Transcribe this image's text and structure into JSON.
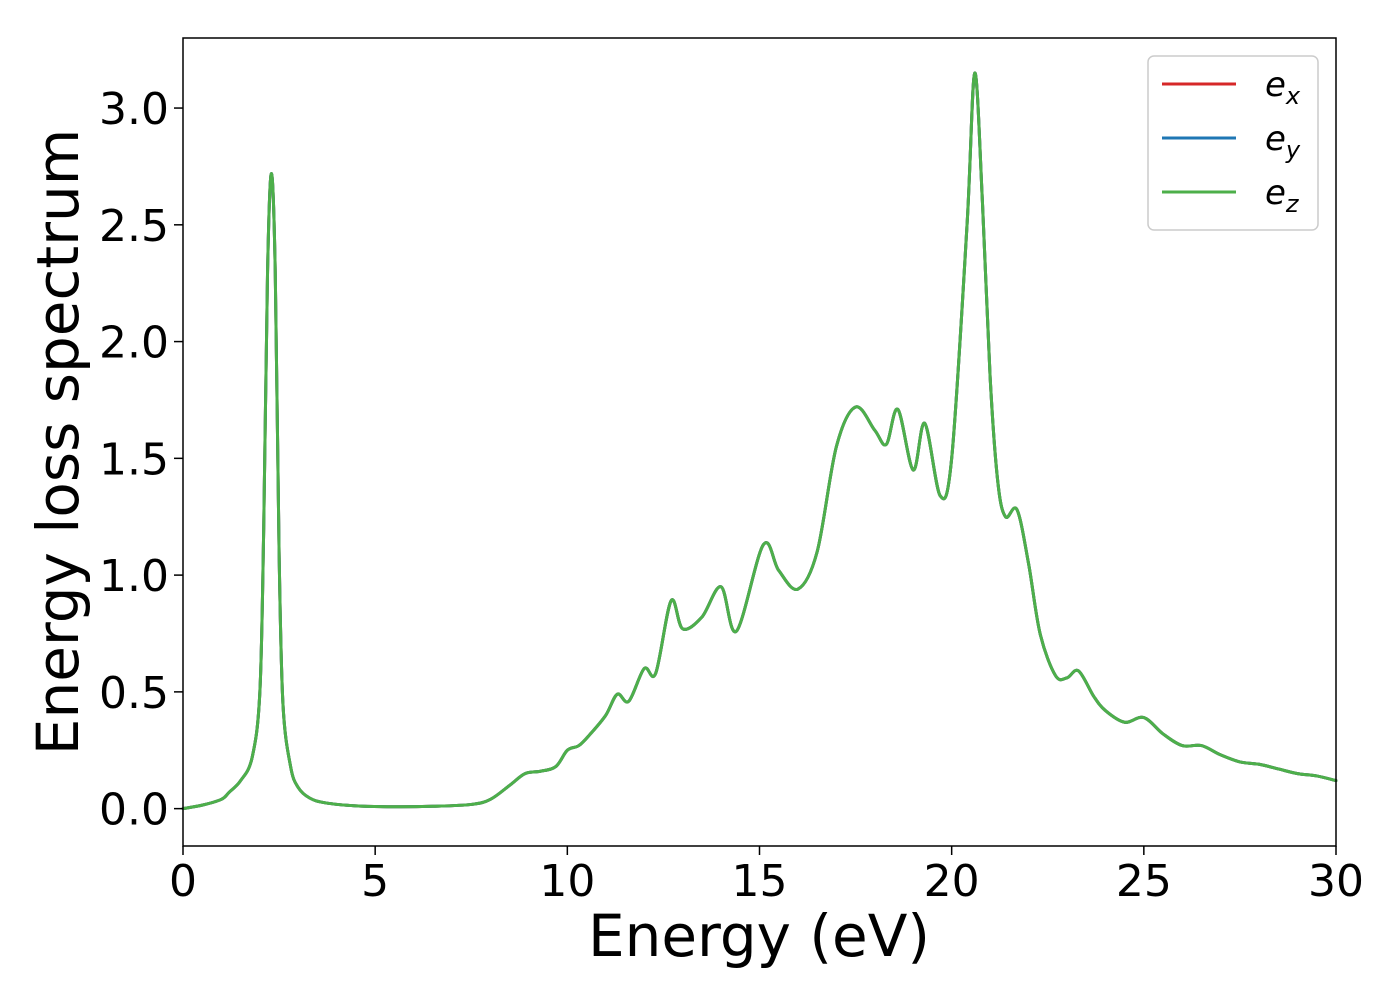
{
  "chart_data": {
    "type": "line",
    "title": "",
    "xlabel": "Energy (eV)",
    "ylabel": "Energy loss spectrum",
    "xlim": [
      0,
      30
    ],
    "ylim": [
      -0.16,
      3.3
    ],
    "grid": false,
    "x_ticks": [
      "0",
      "5",
      "10",
      "15",
      "20",
      "25",
      "30"
    ],
    "x_tick_values": [
      0,
      5,
      10,
      15,
      20,
      25,
      30
    ],
    "y_ticks": [
      "0.0",
      "0.5",
      "1.0",
      "1.5",
      "2.0",
      "2.5",
      "3.0"
    ],
    "y_tick_values": [
      0.0,
      0.5,
      1.0,
      1.5,
      2.0,
      2.5,
      3.0
    ],
    "legend": {
      "placement": "top-right",
      "entries": [
        {
          "base": "e",
          "sub": "x",
          "color": "#d62728"
        },
        {
          "base": "e",
          "sub": "y",
          "color": "#1f77b4"
        },
        {
          "base": "e",
          "sub": "z",
          "color": "#4daf4a"
        }
      ]
    },
    "x": [
      0,
      0.5,
      1.0,
      1.2,
      1.5,
      1.8,
      2.0,
      2.1,
      2.2,
      2.3,
      2.4,
      2.5,
      2.6,
      2.8,
      3.0,
      3.3,
      3.7,
      4.5,
      5.5,
      6.5,
      7.5,
      8.0,
      8.5,
      8.9,
      9.3,
      9.7,
      10.0,
      10.3,
      10.6,
      11.0,
      11.3,
      11.6,
      12.0,
      12.3,
      12.7,
      13.0,
      13.5,
      14.0,
      14.4,
      15.1,
      15.5,
      16.0,
      16.5,
      17.0,
      17.5,
      18.0,
      18.3,
      18.6,
      19.0,
      19.3,
      19.7,
      20.0,
      20.4,
      20.6,
      20.8,
      21.0,
      21.2,
      21.4,
      21.7,
      22.0,
      22.3,
      22.7,
      23.0,
      23.3,
      23.7,
      24.0,
      24.5,
      25.0,
      25.5,
      26.0,
      26.5,
      27.0,
      27.5,
      28.0,
      28.5,
      29.0,
      29.5,
      30.0
    ],
    "series": [
      {
        "name": "e_x",
        "color": "#d62728",
        "values": [
          0.0,
          0.015,
          0.04,
          0.07,
          0.12,
          0.22,
          0.5,
          1.2,
          2.3,
          2.72,
          2.3,
          1.1,
          0.45,
          0.18,
          0.09,
          0.045,
          0.025,
          0.012,
          0.008,
          0.01,
          0.018,
          0.04,
          0.1,
          0.15,
          0.16,
          0.18,
          0.25,
          0.27,
          0.32,
          0.4,
          0.49,
          0.46,
          0.6,
          0.58,
          0.89,
          0.77,
          0.82,
          0.95,
          0.76,
          1.13,
          1.02,
          0.94,
          1.1,
          1.55,
          1.72,
          1.62,
          1.56,
          1.71,
          1.45,
          1.65,
          1.34,
          1.5,
          2.5,
          3.15,
          2.6,
          1.85,
          1.4,
          1.25,
          1.28,
          1.05,
          0.75,
          0.57,
          0.56,
          0.59,
          0.48,
          0.42,
          0.37,
          0.39,
          0.32,
          0.27,
          0.27,
          0.23,
          0.2,
          0.19,
          0.17,
          0.15,
          0.14,
          0.12
        ]
      },
      {
        "name": "e_y",
        "color": "#1f77b4",
        "values": [
          0.0,
          0.015,
          0.04,
          0.07,
          0.12,
          0.22,
          0.5,
          1.2,
          2.3,
          2.72,
          2.3,
          1.1,
          0.45,
          0.18,
          0.09,
          0.045,
          0.025,
          0.012,
          0.008,
          0.01,
          0.018,
          0.04,
          0.1,
          0.15,
          0.16,
          0.18,
          0.25,
          0.27,
          0.32,
          0.4,
          0.49,
          0.46,
          0.6,
          0.58,
          0.89,
          0.77,
          0.82,
          0.95,
          0.76,
          1.13,
          1.02,
          0.94,
          1.1,
          1.55,
          1.72,
          1.62,
          1.56,
          1.71,
          1.45,
          1.65,
          1.34,
          1.5,
          2.5,
          3.15,
          2.6,
          1.85,
          1.4,
          1.25,
          1.28,
          1.05,
          0.75,
          0.57,
          0.56,
          0.59,
          0.48,
          0.42,
          0.37,
          0.39,
          0.32,
          0.27,
          0.27,
          0.23,
          0.2,
          0.19,
          0.17,
          0.15,
          0.14,
          0.12
        ]
      },
      {
        "name": "e_z",
        "color": "#4daf4a",
        "values": [
          0.0,
          0.015,
          0.04,
          0.07,
          0.12,
          0.22,
          0.5,
          1.2,
          2.3,
          2.72,
          2.3,
          1.1,
          0.45,
          0.18,
          0.09,
          0.045,
          0.025,
          0.012,
          0.008,
          0.01,
          0.018,
          0.04,
          0.1,
          0.15,
          0.16,
          0.18,
          0.25,
          0.27,
          0.32,
          0.4,
          0.49,
          0.46,
          0.6,
          0.58,
          0.89,
          0.77,
          0.82,
          0.95,
          0.76,
          1.13,
          1.02,
          0.94,
          1.1,
          1.55,
          1.72,
          1.62,
          1.56,
          1.71,
          1.45,
          1.65,
          1.34,
          1.5,
          2.5,
          3.15,
          2.6,
          1.85,
          1.4,
          1.25,
          1.28,
          1.05,
          0.75,
          0.57,
          0.56,
          0.59,
          0.48,
          0.42,
          0.37,
          0.39,
          0.32,
          0.27,
          0.27,
          0.23,
          0.2,
          0.19,
          0.17,
          0.15,
          0.14,
          0.12
        ]
      }
    ]
  }
}
